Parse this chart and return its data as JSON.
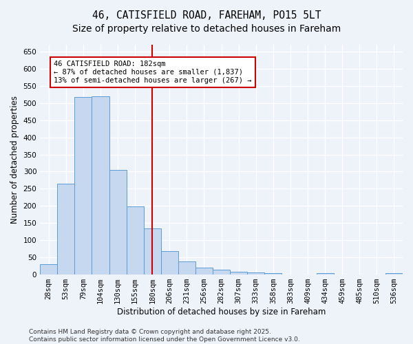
{
  "title_line1": "46, CATISFIELD ROAD, FAREHAM, PO15 5LT",
  "title_line2": "Size of property relative to detached houses in Fareham",
  "xlabel": "Distribution of detached houses by size in Fareham",
  "ylabel": "Number of detached properties",
  "categories": [
    "28sqm",
    "53sqm",
    "79sqm",
    "104sqm",
    "130sqm",
    "155sqm",
    "180sqm",
    "206sqm",
    "231sqm",
    "256sqm",
    "282sqm",
    "307sqm",
    "333sqm",
    "358sqm",
    "383sqm",
    "409sqm",
    "434sqm",
    "459sqm",
    "485sqm",
    "510sqm",
    "536sqm"
  ],
  "values": [
    30,
    265,
    517,
    519,
    304,
    199,
    134,
    68,
    39,
    20,
    14,
    8,
    7,
    4,
    0,
    0,
    4,
    0,
    0,
    0,
    4
  ],
  "bar_color": "#c5d8f0",
  "bar_edge_color": "#5b9bd5",
  "vline_x_index": 6,
  "vline_color": "#cc0000",
  "annotation_text": "46 CATISFIELD ROAD: 182sqm\n← 87% of detached houses are smaller (1,837)\n13% of semi-detached houses are larger (267) →",
  "annotation_box_facecolor": "#ffffff",
  "annotation_box_edgecolor": "#cc0000",
  "ylim": [
    0,
    670
  ],
  "yticks": [
    0,
    50,
    100,
    150,
    200,
    250,
    300,
    350,
    400,
    450,
    500,
    550,
    600,
    650
  ],
  "footer_line1": "Contains HM Land Registry data © Crown copyright and database right 2025.",
  "footer_line2": "Contains public sector information licensed under the Open Government Licence v3.0.",
  "background_color": "#eef2f9",
  "grid_color": "#ffffff",
  "title_fontsize": 10.5,
  "subtitle_fontsize": 10,
  "axis_label_fontsize": 8.5,
  "tick_fontsize": 7.5,
  "annotation_fontsize": 7.5,
  "footer_fontsize": 6.5
}
